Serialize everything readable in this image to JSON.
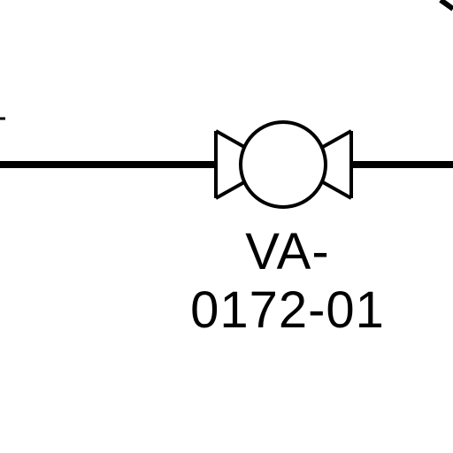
{
  "diagram": {
    "valve": {
      "tag_line_1": "VA-",
      "tag_line_2": "0172-01"
    },
    "colors": {
      "line": "#000000",
      "background": "#ffffff"
    },
    "icon": "valve-symbol-icon"
  }
}
